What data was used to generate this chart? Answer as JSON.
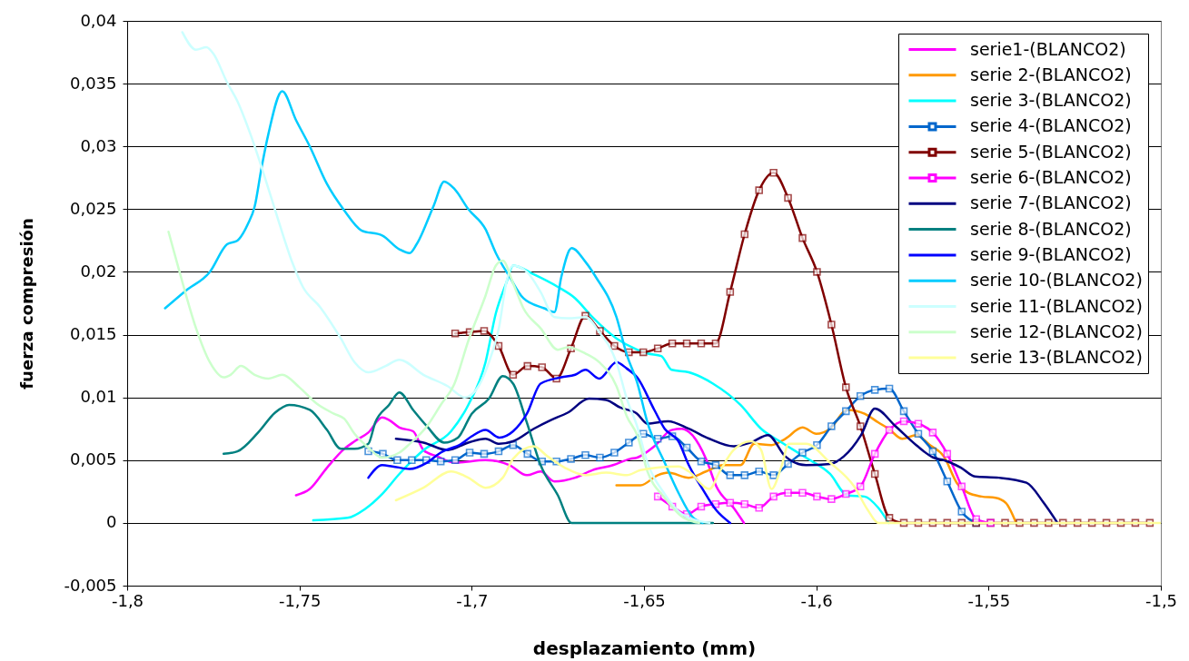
{
  "chart_data": {
    "type": "line",
    "xlabel": "desplazamiento (mm)",
    "ylabel": "fuerza compresión",
    "xlim": [
      -1.8,
      -1.5
    ],
    "ylim": [
      -0.005,
      0.04
    ],
    "xticks": [
      {
        "value": -1.8,
        "label": "-1,8"
      },
      {
        "value": -1.75,
        "label": "-1,75"
      },
      {
        "value": -1.7,
        "label": "-1,7"
      },
      {
        "value": -1.65,
        "label": "-1,65"
      },
      {
        "value": -1.6,
        "label": "-1,6"
      },
      {
        "value": -1.55,
        "label": "-1,55"
      },
      {
        "value": -1.5,
        "label": "-1,5"
      }
    ],
    "yticks": [
      {
        "value": -0.005,
        "label": "-0,005"
      },
      0,
      {
        "value": 0.005,
        "label": "0,005"
      },
      {
        "value": 0.01,
        "label": "0,01"
      },
      {
        "value": 0.015,
        "label": "0,015"
      },
      {
        "value": 0.02,
        "label": "0,02"
      },
      {
        "value": 0.025,
        "label": "0,025"
      },
      {
        "value": 0.03,
        "label": "0,03"
      },
      {
        "value": 0.035,
        "label": "0,035"
      },
      {
        "value": 0.04,
        "label": "0,04"
      }
    ],
    "grid": "y",
    "legend": "top right",
    "series": [
      {
        "name": "serie1-(BLANCO2)",
        "color": "#ff00ff",
        "x": [
          -1.751,
          -1.747,
          -1.742,
          -1.737,
          -1.734,
          -1.73,
          -1.726,
          -1.724,
          -1.721,
          -1.717,
          -1.714,
          -1.71,
          -1.705,
          -1.696,
          -1.689,
          -1.684,
          -1.68,
          -1.676,
          -1.67,
          -1.665,
          -1.659,
          -1.654,
          -1.652,
          -1.647,
          -1.642,
          -1.639,
          -1.636,
          -1.632,
          -1.629,
          -1.624,
          -1.621
        ],
        "values": [
          0.0022,
          0.0027,
          0.0044,
          0.0059,
          0.0065,
          0.0072,
          0.0084,
          0.0082,
          0.0076,
          0.0073,
          0.0058,
          0.0053,
          0.0048,
          0.005,
          0.0046,
          0.0038,
          0.0041,
          0.0033,
          0.0036,
          0.0042,
          0.0046,
          0.0051,
          0.0052,
          0.0061,
          0.0074,
          0.0075,
          0.007,
          0.0051,
          0.0029,
          0.0012,
          0
        ]
      },
      {
        "name": "serie 2-(BLANCO2)",
        "color": "#ff9900",
        "x": [
          -1.658,
          -1.651,
          -1.646,
          -1.643,
          -1.637,
          -1.632,
          -1.627,
          -1.622,
          -1.618,
          -1.613,
          -1.609,
          -1.604,
          -1.6,
          -1.596,
          -1.591,
          -1.586,
          -1.582,
          -1.579,
          -1.575,
          -1.571,
          -1.567,
          -1.563,
          -1.559,
          -1.556,
          -1.552,
          -1.548,
          -1.545,
          -1.542
        ],
        "values": [
          0.003,
          0.003,
          0.0038,
          0.004,
          0.0036,
          0.0041,
          0.0046,
          0.0046,
          0.0063,
          0.0062,
          0.0067,
          0.0076,
          0.0071,
          0.0075,
          0.009,
          0.0087,
          0.008,
          0.0075,
          0.0067,
          0.007,
          0.0062,
          0.0053,
          0.0031,
          0.0024,
          0.0021,
          0.002,
          0.0016,
          0
        ]
      },
      {
        "name": "serie 3-(BLANCO2)",
        "color": "#00ffff",
        "x": [
          -1.746,
          -1.736,
          -1.731,
          -1.726,
          -1.721,
          -1.714,
          -1.706,
          -1.701,
          -1.696,
          -1.693,
          -1.69,
          -1.688,
          -1.682,
          -1.675,
          -1.67,
          -1.665,
          -1.658,
          -1.652,
          -1.649,
          -1.645,
          -1.642,
          -1.637,
          -1.63,
          -1.622,
          -1.616,
          -1.61,
          -1.603,
          -1.596,
          -1.591,
          -1.586,
          -1.582,
          -1.579
        ],
        "values": [
          0.0002,
          0.0004,
          0.0011,
          0.0023,
          0.0039,
          0.0058,
          0.0073,
          0.0094,
          0.0128,
          0.0167,
          0.0191,
          0.0205,
          0.0198,
          0.0188,
          0.0179,
          0.0164,
          0.0147,
          0.0138,
          0.0135,
          0.0133,
          0.0122,
          0.012,
          0.0111,
          0.0094,
          0.0075,
          0.0064,
          0.0052,
          0.0039,
          0.0022,
          0.0021,
          0.0012,
          0
        ]
      },
      {
        "name": "serie 4-(BLANCO2)",
        "color": "#0066cc",
        "marker": "square",
        "x": [
          -1.73,
          -1.7258,
          -1.7216,
          -1.7174,
          -1.7132,
          -1.709,
          -1.7048,
          -1.7006,
          -1.6964,
          -1.6922,
          -1.688,
          -1.6838,
          -1.6796,
          -1.6754,
          -1.6712,
          -1.667,
          -1.6628,
          -1.6586,
          -1.6544,
          -1.6502,
          -1.646,
          -1.6418,
          -1.6376,
          -1.6334,
          -1.6292,
          -1.625,
          -1.6208,
          -1.6166,
          -1.6124,
          -1.6082,
          -1.604,
          -1.5998,
          -1.5956,
          -1.5914,
          -1.5872,
          -1.583,
          -1.5788,
          -1.5746,
          -1.5704,
          -1.5662,
          -1.562,
          -1.5578,
          -1.5536
        ],
        "values": [
          0.0057,
          0.0055,
          0.005,
          0.005,
          0.005,
          0.0049,
          0.005,
          0.0056,
          0.0055,
          0.0057,
          0.0062,
          0.0055,
          0.0049,
          0.0049,
          0.0051,
          0.0054,
          0.0052,
          0.0056,
          0.0064,
          0.0071,
          0.0067,
          0.0069,
          0.006,
          0.0049,
          0.0046,
          0.0038,
          0.0038,
          0.0041,
          0.0038,
          0.0047,
          0.0056,
          0.0062,
          0.0077,
          0.0089,
          0.0101,
          0.0106,
          0.0107,
          0.0089,
          0.0071,
          0.0057,
          0.0033,
          0.0009,
          0
        ]
      },
      {
        "name": "serie 5-(BLANCO2)",
        "color": "#800000",
        "marker": "square",
        "x": [
          -1.7048,
          -1.7006,
          -1.6964,
          -1.6922,
          -1.688,
          -1.6838,
          -1.6796,
          -1.6754,
          -1.6712,
          -1.667,
          -1.6628,
          -1.6586,
          -1.6544,
          -1.6502,
          -1.646,
          -1.6418,
          -1.6376,
          -1.6334,
          -1.6292,
          -1.625,
          -1.6208,
          -1.6166,
          -1.6124,
          -1.6082,
          -1.604,
          -1.5998,
          -1.5956,
          -1.5914,
          -1.5872,
          -1.583,
          -1.5788,
          -1.5746,
          -1.5704,
          -1.5662,
          -1.562,
          -1.5578,
          -1.5536,
          -1.5494,
          -1.5452,
          -1.541,
          -1.5368,
          -1.5326,
          -1.5284,
          -1.5242,
          -1.52,
          -1.5158,
          -1.5116,
          -1.5074,
          -1.5032
        ],
        "values": [
          0.0151,
          0.0152,
          0.0153,
          0.0141,
          0.0118,
          0.0125,
          0.0124,
          0.0115,
          0.0139,
          0.0165,
          0.0153,
          0.0141,
          0.0136,
          0.0136,
          0.0139,
          0.0143,
          0.0143,
          0.0143,
          0.0143,
          0.0184,
          0.023,
          0.0265,
          0.0279,
          0.0259,
          0.0227,
          0.02,
          0.0158,
          0.0108,
          0.0077,
          0.0039,
          0.0004,
          0,
          0,
          0,
          0,
          0,
          0,
          0,
          0,
          0,
          0,
          0,
          0,
          0,
          0,
          0,
          0,
          0,
          0
        ]
      },
      {
        "name": "serie 6-(BLANCO2)",
        "color": "#ff00ff",
        "marker": "square",
        "x": [
          -1.646,
          -1.6418,
          -1.6376,
          -1.6334,
          -1.6292,
          -1.625,
          -1.6208,
          -1.6166,
          -1.6124,
          -1.6082,
          -1.604,
          -1.5998,
          -1.5956,
          -1.5914,
          -1.5872,
          -1.583,
          -1.5788,
          -1.5746,
          -1.5704,
          -1.5662,
          -1.562,
          -1.5578,
          -1.5536,
          -1.5494
        ],
        "values": [
          0.0021,
          0.0013,
          0.0007,
          0.0013,
          0.0015,
          0.0016,
          0.0015,
          0.0012,
          0.0021,
          0.0024,
          0.0024,
          0.0021,
          0.0019,
          0.0023,
          0.0029,
          0.0055,
          0.0074,
          0.0081,
          0.0079,
          0.0072,
          0.0055,
          0.0029,
          0.0003,
          0
        ]
      },
      {
        "name": "serie 7-(BLANCO2)",
        "color": "#000080",
        "x": [
          -1.722,
          -1.714,
          -1.707,
          -1.701,
          -1.696,
          -1.692,
          -1.688,
          -1.682,
          -1.677,
          -1.672,
          -1.666,
          -1.661,
          -1.657,
          -1.652,
          -1.649,
          -1.643,
          -1.637,
          -1.631,
          -1.624,
          -1.619,
          -1.614,
          -1.609,
          -1.603,
          -1.596,
          -1.592,
          -1.587,
          -1.583,
          -1.577,
          -1.571,
          -1.566,
          -1.563,
          -1.558,
          -1.554,
          -1.547,
          -1.539,
          -1.534,
          -1.53
        ],
        "values": [
          0.0067,
          0.0064,
          0.0058,
          0.0064,
          0.0067,
          0.0063,
          0.0065,
          0.0075,
          0.0082,
          0.0088,
          0.0099,
          0.0098,
          0.0092,
          0.0087,
          0.0079,
          0.0081,
          0.0075,
          0.0067,
          0.0061,
          0.0064,
          0.007,
          0.0053,
          0.0046,
          0.0047,
          0.0053,
          0.007,
          0.0091,
          0.0077,
          0.0062,
          0.0052,
          0.005,
          0.0044,
          0.0037,
          0.0036,
          0.0032,
          0.0016,
          0
        ]
      },
      {
        "name": "serie 8-(BLANCO2)",
        "color": "#008080",
        "x": [
          -1.772,
          -1.768,
          -1.762,
          -1.757,
          -1.753,
          -1.747,
          -1.742,
          -1.738,
          -1.734,
          -1.73,
          -1.728,
          -1.724,
          -1.721,
          -1.717,
          -1.713,
          -1.708,
          -1.704,
          -1.7,
          -1.695,
          -1.691,
          -1.688,
          -1.684,
          -1.68,
          -1.675,
          -1.671,
          -1.63
        ],
        "values": [
          0.0055,
          0.0057,
          0.0072,
          0.0088,
          0.0094,
          0.009,
          0.0074,
          0.0059,
          0.0059,
          0.0063,
          0.008,
          0.0094,
          0.0104,
          0.009,
          0.0077,
          0.0064,
          0.0068,
          0.0087,
          0.0099,
          0.0117,
          0.0111,
          0.008,
          0.0046,
          0.0022,
          0,
          0
        ]
      },
      {
        "name": "serie 9-(BLANCO2)",
        "color": "#0000ff",
        "x": [
          -1.73,
          -1.726,
          -1.723,
          -1.718,
          -1.713,
          -1.709,
          -1.703,
          -1.7,
          -1.696,
          -1.692,
          -1.688,
          -1.684,
          -1.68,
          -1.674,
          -1.67,
          -1.667,
          -1.663,
          -1.658,
          -1.655,
          -1.652,
          -1.647,
          -1.644,
          -1.64,
          -1.637,
          -1.633,
          -1.629,
          -1.625
        ],
        "values": [
          0.0036,
          0.0046,
          0.0045,
          0.0043,
          0.0048,
          0.0056,
          0.0063,
          0.0069,
          0.0074,
          0.0068,
          0.0073,
          0.0087,
          0.0111,
          0.0116,
          0.0118,
          0.0122,
          0.0115,
          0.0128,
          0.0123,
          0.0116,
          0.009,
          0.0075,
          0.0065,
          0.0046,
          0.0027,
          0.001,
          0
        ]
      },
      {
        "name": "serie 10-(BLANCO2)",
        "color": "#00ccff",
        "x": [
          -1.789,
          -1.783,
          -1.776,
          -1.771,
          -1.768,
          -1.765,
          -1.763,
          -1.761,
          -1.759,
          -1.755,
          -1.751,
          -1.747,
          -1.742,
          -1.737,
          -1.732,
          -1.726,
          -1.721,
          -1.718,
          -1.716,
          -1.711,
          -1.708,
          -1.705,
          -1.701,
          -1.696,
          -1.693,
          -1.689,
          -1.685,
          -1.679,
          -1.676,
          -1.674,
          -1.671,
          -1.667,
          -1.664,
          -1.658,
          -1.655,
          -1.652,
          -1.649,
          -1.644,
          -1.64,
          -1.636,
          -1.633
        ],
        "values": [
          0.0171,
          0.0185,
          0.02,
          0.0222,
          0.0225,
          0.0238,
          0.0252,
          0.0283,
          0.031,
          0.0344,
          0.0321,
          0.03,
          0.027,
          0.0249,
          0.0233,
          0.0229,
          0.0218,
          0.0215,
          0.0222,
          0.0253,
          0.0272,
          0.0266,
          0.025,
          0.0234,
          0.0215,
          0.0196,
          0.0179,
          0.0171,
          0.0168,
          0.0196,
          0.0219,
          0.0208,
          0.0196,
          0.0164,
          0.0134,
          0.0112,
          0.008,
          0.0048,
          0.0024,
          0.0005,
          0
        ]
      },
      {
        "name": "serie 11-(BLANCO2)",
        "color": "#ccffff",
        "x": [
          -1.784,
          -1.78,
          -1.777,
          -1.775,
          -1.771,
          -1.768,
          -1.764,
          -1.76,
          -1.756,
          -1.752,
          -1.749,
          -1.744,
          -1.738,
          -1.734,
          -1.73,
          -1.725,
          -1.721,
          -1.714,
          -1.707,
          -1.702,
          -1.698,
          -1.695,
          -1.692,
          -1.69,
          -1.688,
          -1.684,
          -1.68,
          -1.676,
          -1.672,
          -1.667,
          -1.663,
          -1.658,
          -1.655,
          -1.652,
          -1.649,
          -1.644,
          -1.639,
          -1.631
        ],
        "values": [
          0.0391,
          0.0377,
          0.0379,
          0.0374,
          0.0351,
          0.0336,
          0.0308,
          0.0275,
          0.024,
          0.0207,
          0.0188,
          0.0172,
          0.0147,
          0.0128,
          0.012,
          0.0125,
          0.013,
          0.0118,
          0.0109,
          0.01,
          0.0109,
          0.0128,
          0.0157,
          0.0191,
          0.0205,
          0.02,
          0.0184,
          0.0164,
          0.0163,
          0.0164,
          0.0152,
          0.0128,
          0.0099,
          0.0077,
          0.0048,
          0.0023,
          0.0007,
          0
        ]
      },
      {
        "name": "serie 12-(BLANCO2)",
        "color": "#ccffcc",
        "x": [
          -1.788,
          -1.785,
          -1.78,
          -1.776,
          -1.772,
          -1.77,
          -1.767,
          -1.763,
          -1.759,
          -1.755,
          -1.75,
          -1.745,
          -1.74,
          -1.737,
          -1.734,
          -1.73,
          -1.726,
          -1.721,
          -1.718,
          -1.713,
          -1.709,
          -1.705,
          -1.701,
          -1.696,
          -1.693,
          -1.691,
          -1.688,
          -1.685,
          -1.68,
          -1.675,
          -1.672,
          -1.667,
          -1.663,
          -1.658,
          -1.655,
          -1.652,
          -1.649,
          -1.644,
          -1.639,
          -1.634
        ],
        "values": [
          0.0232,
          0.0202,
          0.0155,
          0.0128,
          0.0116,
          0.0118,
          0.0125,
          0.0118,
          0.0115,
          0.0118,
          0.0108,
          0.0095,
          0.0087,
          0.0083,
          0.0071,
          0.006,
          0.0052,
          0.0056,
          0.0063,
          0.0077,
          0.0094,
          0.0111,
          0.0145,
          0.0181,
          0.0205,
          0.0209,
          0.0191,
          0.0171,
          0.0155,
          0.0138,
          0.014,
          0.0135,
          0.0128,
          0.0109,
          0.0085,
          0.007,
          0.0041,
          0.002,
          0.0005,
          0
        ]
      },
      {
        "name": "serie 13-(BLANCO2)",
        "color": "#ffff99",
        "x": [
          -1.722,
          -1.714,
          -1.706,
          -1.701,
          -1.696,
          -1.691,
          -1.688,
          -1.682,
          -1.678,
          -1.673,
          -1.667,
          -1.661,
          -1.655,
          -1.651,
          -1.64,
          -1.637,
          -1.631,
          -1.628,
          -1.624,
          -1.619,
          -1.616,
          -1.613,
          -1.61,
          -1.608,
          -1.603,
          -1.596,
          -1.589,
          -1.585,
          -1.582,
          -1.5
        ],
        "values": [
          0.0018,
          0.0028,
          0.0041,
          0.0036,
          0.0028,
          0.0036,
          0.0051,
          0.0061,
          0.0053,
          0.0044,
          0.0038,
          0.004,
          0.0038,
          0.0042,
          0.0045,
          0.0041,
          0.0027,
          0.0041,
          0.0058,
          0.0065,
          0.0058,
          0.0027,
          0.0046,
          0.0063,
          0.0063,
          0.0048,
          0.0029,
          0.001,
          0,
          0
        ]
      }
    ]
  }
}
